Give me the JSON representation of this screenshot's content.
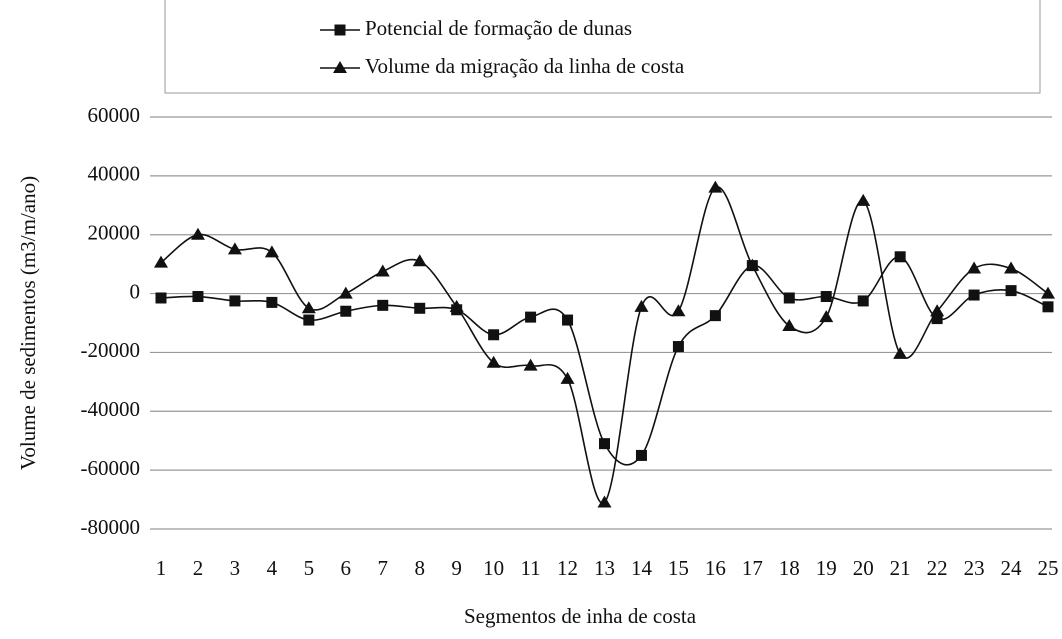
{
  "chart_data": {
    "type": "line",
    "x_label": "Segmentos de inha de costa",
    "y_label": "Volume de sedimentos (m3/m/ano)",
    "categories": [
      "1",
      "2",
      "3",
      "4",
      "5",
      "6",
      "7",
      "8",
      "9",
      "10",
      "11",
      "12",
      "13",
      "14",
      "15",
      "16",
      "17",
      "18",
      "19",
      "20",
      "21",
      "22",
      "23",
      "24",
      "25"
    ],
    "series": [
      {
        "name": "Potencial de formação de dunas",
        "color": "#111111",
        "marker": "square",
        "values": [
          -1500,
          -1000,
          -2500,
          -3000,
          -9000,
          -6000,
          -4000,
          -5000,
          -5500,
          -14000,
          -8000,
          -9000,
          -51000,
          -55000,
          -18000,
          -7500,
          9500,
          -1500,
          -1000,
          -2500,
          12500,
          -8500,
          -500,
          1000,
          -4500
        ]
      },
      {
        "name": "Volume da migração da linha de costa",
        "color": "#111111",
        "marker": "triangle",
        "values": [
          10500,
          20000,
          15000,
          14000,
          -5000,
          0,
          7500,
          11000,
          -4500,
          -23500,
          -24500,
          -29000,
          -71000,
          -4500,
          -6000,
          36000,
          9500,
          -11000,
          -8000,
          31500,
          -20500,
          -6000,
          8500,
          8500,
          0
        ]
      }
    ],
    "ylim": [
      -80000,
      60000
    ],
    "yticks": [
      -80000,
      -60000,
      -40000,
      -20000,
      0,
      20000,
      40000,
      60000
    ],
    "grid": true
  }
}
